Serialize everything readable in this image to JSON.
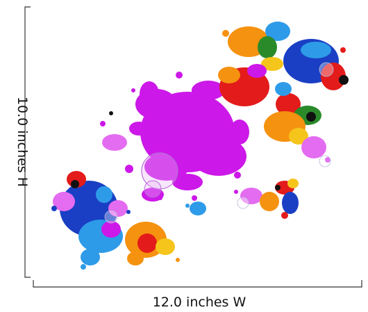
{
  "dimensions": {
    "height_label": "10.0 inches H",
    "width_label": "12.0 inches W"
  },
  "artwork": {
    "icon": "paint-splatter-artwork",
    "colors": {
      "magenta": "#cc18e8",
      "purple_light": "#e46cf0",
      "blue": "#1a3fc4",
      "sky": "#2e9be8",
      "orange": "#f5920f",
      "yellow": "#f6c51c",
      "red": "#e31b1b",
      "green": "#2a8a2a",
      "black": "#111111"
    }
  }
}
